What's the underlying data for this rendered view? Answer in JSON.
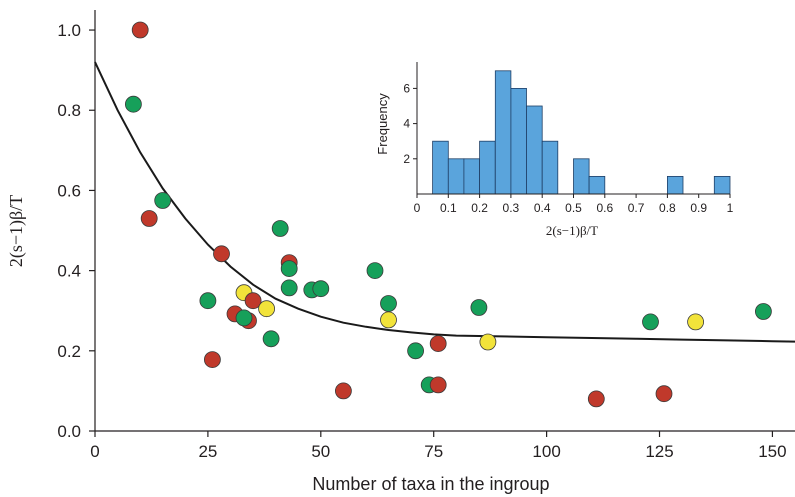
{
  "chart_data": {
    "type": "scatter",
    "xlabel": "Number of taxa in the ingroup",
    "ylabel": "2(s−1)β/T",
    "xlim": [
      0,
      155
    ],
    "ylim": [
      0,
      1.05
    ],
    "x_ticks": [
      0,
      25,
      50,
      75,
      100,
      125,
      150
    ],
    "y_ticks": [
      0.0,
      0.2,
      0.4,
      0.6,
      0.8,
      1.0
    ],
    "x_tick_labels": [
      "0",
      "25",
      "50",
      "75",
      "100",
      "125",
      "150"
    ],
    "y_tick_labels": [
      "0.0",
      "0.2",
      "0.4",
      "0.6",
      "0.8",
      "1.0"
    ],
    "grid": false,
    "colors": {
      "red": "#c0392b",
      "green": "#16a05a",
      "yellow": "#f2e33a",
      "curve": "#1a1a1a",
      "histogram": "#5aa4dc"
    },
    "points": [
      {
        "x": 10,
        "y": 1.0,
        "color": "red"
      },
      {
        "x": 8.5,
        "y": 0.815,
        "color": "green"
      },
      {
        "x": 15,
        "y": 0.575,
        "color": "green"
      },
      {
        "x": 12,
        "y": 0.53,
        "color": "red"
      },
      {
        "x": 28,
        "y": 0.442,
        "color": "red"
      },
      {
        "x": 41,
        "y": 0.505,
        "color": "green"
      },
      {
        "x": 43,
        "y": 0.42,
        "color": "red"
      },
      {
        "x": 43,
        "y": 0.405,
        "color": "green"
      },
      {
        "x": 62,
        "y": 0.4,
        "color": "green"
      },
      {
        "x": 43,
        "y": 0.357,
        "color": "green"
      },
      {
        "x": 48,
        "y": 0.352,
        "color": "green"
      },
      {
        "x": 50,
        "y": 0.355,
        "color": "green"
      },
      {
        "x": 25,
        "y": 0.325,
        "color": "green"
      },
      {
        "x": 33,
        "y": 0.345,
        "color": "yellow"
      },
      {
        "x": 35,
        "y": 0.325,
        "color": "red"
      },
      {
        "x": 38,
        "y": 0.305,
        "color": "yellow"
      },
      {
        "x": 31,
        "y": 0.292,
        "color": "red"
      },
      {
        "x": 34,
        "y": 0.275,
        "color": "red"
      },
      {
        "x": 33,
        "y": 0.282,
        "color": "green"
      },
      {
        "x": 39,
        "y": 0.23,
        "color": "green"
      },
      {
        "x": 65,
        "y": 0.318,
        "color": "green"
      },
      {
        "x": 65,
        "y": 0.277,
        "color": "yellow"
      },
      {
        "x": 85,
        "y": 0.308,
        "color": "green"
      },
      {
        "x": 76,
        "y": 0.218,
        "color": "red"
      },
      {
        "x": 87,
        "y": 0.222,
        "color": "yellow"
      },
      {
        "x": 71,
        "y": 0.2,
        "color": "green"
      },
      {
        "x": 26,
        "y": 0.178,
        "color": "red"
      },
      {
        "x": 74,
        "y": 0.115,
        "color": "green"
      },
      {
        "x": 76,
        "y": 0.115,
        "color": "red"
      },
      {
        "x": 55,
        "y": 0.1,
        "color": "red"
      },
      {
        "x": 111,
        "y": 0.08,
        "color": "red"
      },
      {
        "x": 126,
        "y": 0.093,
        "color": "red"
      },
      {
        "x": 123,
        "y": 0.272,
        "color": "green"
      },
      {
        "x": 133,
        "y": 0.272,
        "color": "yellow"
      },
      {
        "x": 148,
        "y": 0.298,
        "color": "green"
      }
    ],
    "curve": {
      "x": [
        0,
        5,
        10,
        15,
        20,
        25,
        30,
        35,
        40,
        45,
        50,
        55,
        60,
        65,
        70,
        75,
        80,
        90,
        100,
        110,
        120,
        130,
        140,
        150,
        155
      ],
      "y": [
        0.92,
        0.8,
        0.695,
        0.605,
        0.53,
        0.465,
        0.41,
        0.365,
        0.33,
        0.305,
        0.285,
        0.27,
        0.26,
        0.252,
        0.246,
        0.241,
        0.238,
        0.236,
        0.234,
        0.232,
        0.23,
        0.228,
        0.226,
        0.224,
        0.223
      ]
    },
    "inset": {
      "type": "histogram",
      "xlabel": "2(s−1)β/T",
      "ylabel": "Frequency",
      "xlim": [
        0,
        1
      ],
      "ylim": [
        0,
        7.5
      ],
      "x_ticks": [
        0,
        0.1,
        0.2,
        0.3,
        0.4,
        0.5,
        0.6,
        0.7,
        0.8,
        0.9,
        1
      ],
      "x_tick_labels": [
        "0",
        "0.1",
        "0.2",
        "0.3",
        "0.4",
        "0.5",
        "0.6",
        "0.7",
        "0.8",
        "0.9",
        "1"
      ],
      "y_ticks": [
        2,
        4,
        6
      ],
      "y_tick_labels": [
        "2",
        "4",
        "6"
      ],
      "bin_width": 0.05,
      "bin_starts": [
        0.05,
        0.1,
        0.15,
        0.2,
        0.25,
        0.3,
        0.35,
        0.4,
        0.5,
        0.55,
        0.8,
        0.95
      ],
      "counts": [
        3,
        2,
        2,
        3,
        7,
        6,
        5,
        3,
        2,
        1,
        1,
        1
      ]
    }
  }
}
